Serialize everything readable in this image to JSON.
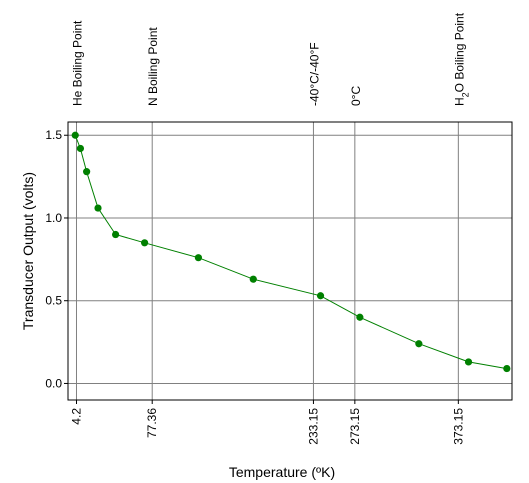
{
  "chart_data": {
    "type": "line",
    "title": "",
    "xlabel": "Temperature (ºK)",
    "ylabel": "Transducer Output (volts)",
    "xlim": [
      -4,
      425
    ],
    "ylim": [
      -0.1,
      1.58
    ],
    "grid": true,
    "series_color": "#008000",
    "x_ticks": [
      {
        "value": 4.2,
        "label": "4.2"
      },
      {
        "value": 77.36,
        "label": "77.36"
      },
      {
        "value": 233.15,
        "label": "233.15"
      },
      {
        "value": 273.15,
        "label": "273.15"
      },
      {
        "value": 373.15,
        "label": "373.15"
      }
    ],
    "y_ticks": [
      {
        "value": 0.0,
        "label": "0.0"
      },
      {
        "value": 0.5,
        "label": "0.5"
      },
      {
        "value": 1.0,
        "label": "1.0"
      },
      {
        "value": 1.5,
        "label": "1.5"
      }
    ],
    "reference_lines": [
      {
        "value": 4.2,
        "label": "He Boiling Point",
        "label_kind": "He"
      },
      {
        "value": 77.36,
        "label": "N Boiling Point",
        "label_kind": "plain"
      },
      {
        "value": 233.15,
        "label": "-40°C/-40°F",
        "label_kind": "plain"
      },
      {
        "value": 273.15,
        "label": "0°C",
        "label_kind": "plain"
      },
      {
        "value": 373.15,
        "label": "H2O Boiling Point",
        "label_kind": "H2O"
      }
    ],
    "series": [
      {
        "x": [
          3,
          8,
          14,
          25,
          42,
          70,
          122,
          175,
          240,
          278,
          335,
          383,
          420
        ],
        "y": [
          1.5,
          1.42,
          1.28,
          1.06,
          0.9,
          0.85,
          0.76,
          0.63,
          0.53,
          0.4,
          0.24,
          0.13,
          0.09
        ]
      }
    ]
  }
}
